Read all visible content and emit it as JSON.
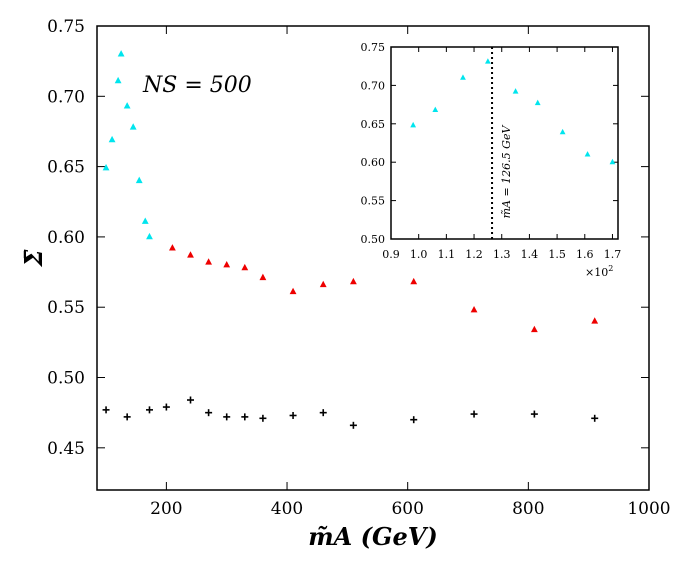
{
  "chart_data": [
    {
      "type": "scatter",
      "panel": "main",
      "xlim": [
        85,
        1000
      ],
      "ylim": [
        0.42,
        0.75
      ],
      "xticks": [
        200,
        400,
        600,
        800,
        1000
      ],
      "yticks": [
        0.45,
        0.5,
        0.55,
        0.6,
        0.65,
        0.7,
        0.75
      ],
      "xtick_labels": [
        "200",
        "400",
        "600",
        "800",
        "1000"
      ],
      "ytick_labels": [
        "0.45",
        "0.50",
        "0.55",
        "0.60",
        "0.65",
        "0.70",
        "0.75"
      ],
      "xlabel": "m̃A (GeV)",
      "ylabel": "Σ̄",
      "annotation": "NS = 500",
      "series": [
        {
          "name": "cyan",
          "color": "#00e5ee",
          "marker": "triangle",
          "x": [
            100,
            110,
            120,
            125,
            135,
            145,
            155,
            165,
            172
          ],
          "y": [
            0.649,
            0.669,
            0.711,
            0.73,
            0.693,
            0.678,
            0.64,
            0.611,
            0.6
          ]
        },
        {
          "name": "red",
          "color": "#ee0000",
          "marker": "triangle",
          "x": [
            210,
            240,
            270,
            300,
            330,
            360,
            410,
            460,
            510,
            610,
            710,
            810,
            910
          ],
          "y": [
            0.592,
            0.587,
            0.582,
            0.58,
            0.578,
            0.571,
            0.561,
            0.566,
            0.568,
            0.568,
            0.548,
            0.534,
            0.54
          ]
        },
        {
          "name": "black",
          "color": "#000000",
          "marker": "plus",
          "x": [
            100,
            135,
            172,
            200,
            240,
            270,
            300,
            330,
            360,
            410,
            460,
            510,
            610,
            710,
            810,
            910
          ],
          "y": [
            0.477,
            0.472,
            0.477,
            0.479,
            0.484,
            0.475,
            0.472,
            0.472,
            0.471,
            0.473,
            0.475,
            0.466,
            0.47,
            0.474,
            0.474,
            0.471
          ]
        }
      ]
    },
    {
      "type": "scatter",
      "panel": "inset",
      "xlim": [
        0.9,
        1.72
      ],
      "ylim": [
        0.5,
        0.75
      ],
      "xticks": [
        0.9,
        1.0,
        1.1,
        1.2,
        1.3,
        1.4,
        1.5,
        1.6,
        1.7
      ],
      "yticks": [
        0.5,
        0.55,
        0.6,
        0.65,
        0.7,
        0.75
      ],
      "xtick_labels": [
        "0.9",
        "1.0",
        "1.1",
        "1.2",
        "1.3",
        "1.4",
        "1.5",
        "1.6",
        "1.7"
      ],
      "ytick_labels": [
        "0.50",
        "0.55",
        "0.60",
        "0.65",
        "0.70",
        "0.75"
      ],
      "x_multiplier_base": "×10",
      "x_multiplier_exp": "2",
      "vline_x": 1.265,
      "vline_label": "m̃A = 126.5 GeV",
      "series": [
        {
          "name": "cyan",
          "color": "#00e5ee",
          "marker": "triangle",
          "x": [
            0.98,
            1.06,
            1.16,
            1.25,
            1.35,
            1.43,
            1.52,
            1.61,
            1.7
          ],
          "y": [
            0.648,
            0.668,
            0.71,
            0.731,
            0.692,
            0.677,
            0.639,
            0.61,
            0.6
          ]
        }
      ]
    }
  ]
}
